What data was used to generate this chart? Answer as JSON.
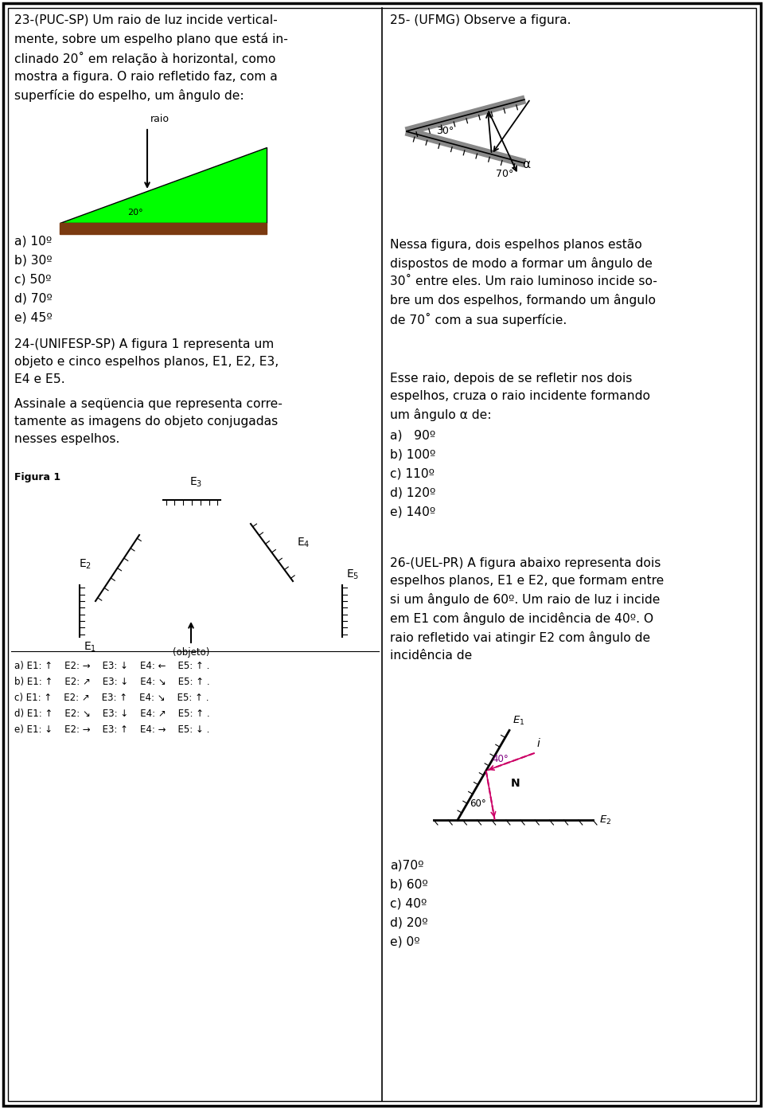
{
  "bg_color": "#ffffff",
  "q23_text": "23-(PUC-SP) Um raio de luz incide vertical-\nmente, sobre um espelho plano que está in-\nclinado 20˚ em relação à horizontal, como\nmostra a figura. O raio refletido faz, com a\nsuperfície do espelho, um ângulo de:",
  "q23_answers": [
    "a) 10º",
    "b) 30º",
    "c) 50º",
    "d) 70º",
    "e) 45º"
  ],
  "q24_text": "24-(UNIFESP-SP) A figura 1 representa um\nobjeto e cinco espelhos planos, E1, E2, E3,\nE4 e E5.",
  "q24_sub": "Assinale a seqüencia que representa corre-\ntamente as imagens do objeto conjugadas\nnesses espelhos.",
  "q24_answers": [
    "a) E1: ↑    E2: →    E3: ↓    E4: ←    E5: ↑ .",
    "b) E1: ↑    E2: ↗    E3: ↓    E4: ↘    E5: ↑ .",
    "c) E1: ↑    E2: ↗    E3: ↑    E4: ↘    E5: ↑ .",
    "d) E1: ↑    E2: ↘    E3: ↓    E4: ↗    E5: ↑ .",
    "e) E1: ↓    E2: →    E3: ↑    E4: →    E5: ↓ ."
  ],
  "q25_title": "25- (UFMG) Observe a figura.",
  "q25_body": "Nessa figura, dois espelhos planos estão\ndispostos de modo a formar um ângulo de\n30˚ entre eles. Um raio luminoso incide so-\nbre um dos espelhos, formando um ângulo\nde 70˚ com a sua superfície.",
  "q25_body2": "Esse raio, depois de se refletir nos dois\nespelhos, cruza o raio incidente formando\num ângulo α de:",
  "q25_answers": [
    "a)   90º",
    "b) 100º",
    "c) 110º",
    "d) 120º",
    "e) 140º"
  ],
  "q26_text": "26-(UEL-PR) A figura abaixo representa dois\nespelhos planos, E1 e E2, que formam entre\nsi um ângulo de 60º. Um raio de luz i incide\nem E1 com ângulo de incidência de 40º. O\nraio refletido vai atingir E2 com ângulo de\nincidência de",
  "q26_answers": [
    "a)70º",
    "b) 60º",
    "c) 40º",
    "d) 20º",
    "e) 0º"
  ]
}
